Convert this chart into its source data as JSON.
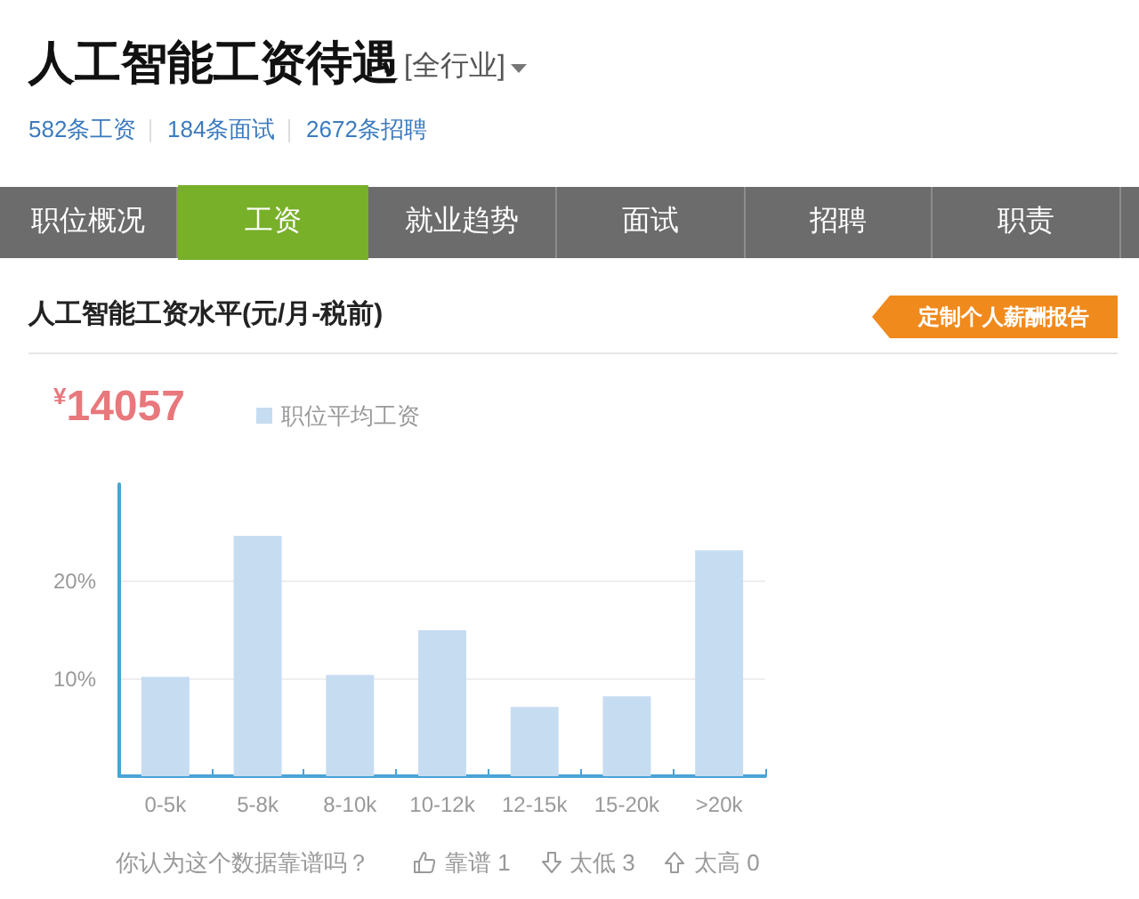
{
  "chart_data": {
    "type": "bar",
    "title": "人工智能工资待遇",
    "subtitle": "人工智能工资水平(元/月-税前)",
    "annotations": [
      "[全行业]",
      "582条工资",
      "184条面试",
      "2672条招聘",
      "职位概况",
      "工资",
      "就业趋势",
      "面试",
      "招聘",
      "职责",
      "定制个人薪酬报告",
      "¥14057",
      "你认为这个数据靠谱吗？",
      "靠谱 1",
      "太低 3",
      "太高 0"
    ],
    "categories": [
      "0-5k",
      "5-8k",
      "8-10k",
      "10-12k",
      "12-15k",
      "15-20k",
      ">20k"
    ],
    "series": [
      {
        "name": "职位平均工资",
        "color": "#c6dcf1",
        "values": [
          10.2,
          24.7,
          10.4,
          15.0,
          7.1,
          8.2,
          23.2
        ]
      }
    ],
    "ylim": [
      0,
      30
    ],
    "yticks": [
      {
        "value": 10,
        "label": "10%"
      },
      {
        "value": 20,
        "label": "20%"
      }
    ],
    "grid": "y",
    "legend": "top left"
  }
}
